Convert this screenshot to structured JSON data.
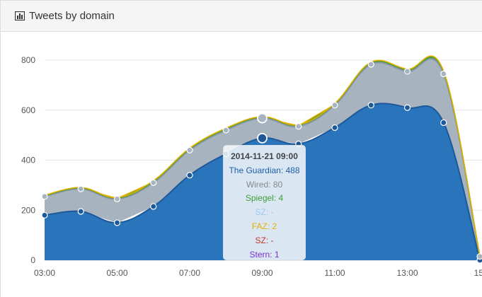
{
  "panel": {
    "title": "Tweets by domain",
    "icon": "bar-chart-icon"
  },
  "colors": {
    "guardian": "#2a74bb",
    "guardian_line": "#1d5899",
    "wired": "#a7b4c0",
    "wired_line": "#8a97a3",
    "spiegel": "#3f9d35",
    "faz": "#e4b000",
    "grid": "#e6e6e6"
  },
  "chart_data": {
    "type": "area",
    "stacked": true,
    "x": [
      "03:00",
      "04:00",
      "05:00",
      "06:00",
      "07:00",
      "08:00",
      "09:00",
      "10:00",
      "11:00",
      "12:00",
      "13:00",
      "14:00",
      "15:00"
    ],
    "x_tick_labels": [
      "03:00",
      "05:00",
      "07:00",
      "09:00",
      "11:00",
      "13:00",
      "15:"
    ],
    "y_tick_labels": [
      "0",
      "200",
      "400",
      "600",
      "800"
    ],
    "ylim": [
      0,
      800
    ],
    "grid": true,
    "series": [
      {
        "name": "The Guardian",
        "values": [
          180,
          195,
          150,
          215,
          340,
          425,
          488,
          465,
          530,
          620,
          610,
          550,
          0
        ]
      },
      {
        "name": "Wired",
        "values": [
          75,
          90,
          95,
          95,
          100,
          95,
          80,
          70,
          90,
          163,
          145,
          195,
          15
        ]
      },
      {
        "name": "Spiegel",
        "values": [
          3,
          4,
          4,
          5,
          5,
          5,
          4,
          5,
          5,
          6,
          6,
          8,
          0
        ]
      },
      {
        "name": "FAZ",
        "values": [
          2,
          2,
          2,
          3,
          3,
          3,
          2,
          2,
          2,
          3,
          3,
          3,
          0
        ]
      }
    ],
    "tooltip": {
      "title": "2014-11-21 09:00",
      "lines": [
        {
          "text": "The Guardian: 488",
          "color": "#1f5ea8"
        },
        {
          "text": "Wired: 80",
          "color": "#888888"
        },
        {
          "text": "Spiegel: 4",
          "color": "#3f9d35"
        },
        {
          "text": "SZ: -",
          "color": "#9ccaf0"
        },
        {
          "text": "FAZ: 2",
          "color": "#e4b000"
        },
        {
          "text": "SZ: -",
          "color": "#c0392b"
        },
        {
          "text": "Stern: 1",
          "color": "#7b2fd1"
        }
      ]
    }
  }
}
